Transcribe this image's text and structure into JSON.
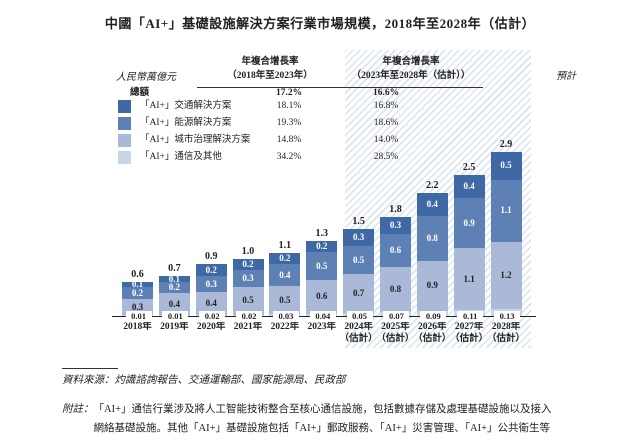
{
  "page": {
    "title": "中國「AI+」基礎設施解決方案行業市場規模，2018年至2028年（估計）"
  },
  "unit_label": "人民幣萬億元",
  "forecast_label": "預計",
  "cagr_table": {
    "col1": {
      "line1": "年複合增長率",
      "line2": "（2018年至2023年）"
    },
    "col2": {
      "line1": "年複合增長率",
      "line2": "（2023年至2028年（估計））"
    },
    "rows": [
      {
        "label": "總額",
        "cagr1": "17.2%",
        "cagr2": "16.6%"
      },
      {
        "label": "「AI+」交通解決方案",
        "cagr1": "18.1%",
        "cagr2": "16.8%"
      },
      {
        "label": "「AI+」能源解決方案",
        "cagr1": "19.3%",
        "cagr2": "18.6%"
      },
      {
        "label": "「AI+」城市治理解決方案",
        "cagr1": "14.8%",
        "cagr2": "14.0%"
      },
      {
        "label": "「AI+」通信及其他",
        "cagr1": "34.2%",
        "cagr2": "28.5%"
      }
    ]
  },
  "chart_data": {
    "type": "bar",
    "stacked": true,
    "title": "中國「AI+」基礎設施解決方案行業市場規模，2018年至2028年（估計）",
    "ylabel": "人民幣萬億元",
    "grid": false,
    "forecast_from_index": 6,
    "categories": [
      "2018年",
      "2019年",
      "2020年",
      "2021年",
      "2022年",
      "2023年",
      "2024年（估計）",
      "2025年（估計）",
      "2026年（估計）",
      "2027年（估計）",
      "2028年（估計）"
    ],
    "series": [
      {
        "name": "「AI+」通信及其他",
        "color": "#c9d4e9",
        "label_position": "axis",
        "label_color": "#1f1f1f",
        "values": [
          0.01,
          0.01,
          0.02,
          0.02,
          0.03,
          0.04,
          0.05,
          0.07,
          0.09,
          0.11,
          0.13
        ]
      },
      {
        "name": "「AI+」城市治理解決方案",
        "color": "#aab9d8",
        "label_position": "inside",
        "label_color": "#1f1f1f",
        "values": [
          0.3,
          0.4,
          0.4,
          0.5,
          0.5,
          0.6,
          0.7,
          0.8,
          0.9,
          1.1,
          1.2
        ]
      },
      {
        "name": "「AI+」能源解決方案",
        "color": "#5e81b5",
        "label_position": "inside",
        "label_color": "#ffffff",
        "values": [
          0.2,
          0.2,
          0.3,
          0.3,
          0.4,
          0.5,
          0.5,
          0.6,
          0.8,
          0.9,
          1.1
        ]
      },
      {
        "name": "「AI+」交通解決方案",
        "color": "#3e69a5",
        "label_position": "inside",
        "label_color": "#ffffff",
        "values": [
          0.1,
          0.1,
          0.2,
          0.2,
          0.2,
          0.2,
          0.3,
          0.3,
          0.4,
          0.4,
          0.5
        ]
      }
    ],
    "totals": [
      0.6,
      0.7,
      0.9,
      1.0,
      1.1,
      1.3,
      1.5,
      1.8,
      2.2,
      2.5,
      2.9
    ]
  },
  "footer": {
    "source": "資料來源：灼識諮詢報告、交通運輸部、國家能源局、民政部",
    "note_label": "附註：",
    "note_lines": [
      "「AI+」通信行業涉及將人工智能技術整合至核心通信設施，包括數據存儲及處理基礎設施以及接入",
      "網絡基礎設施。其他「AI+」基礎設施包括「AI+」郵政服務、「AI+」災害管理、「AI+」公共衛生等"
    ]
  }
}
